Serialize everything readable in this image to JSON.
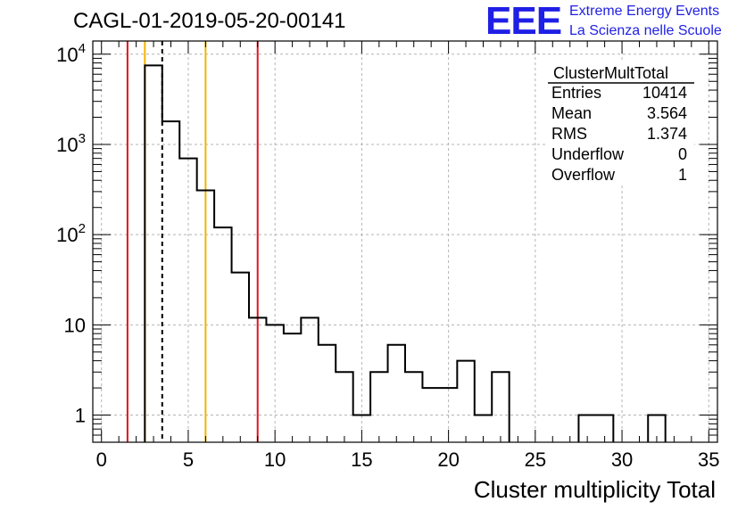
{
  "header": {
    "title": "CAGL-01-2019-05-20-00141",
    "logo_mark": "EEE",
    "logo_line1": "Extreme Energy Events",
    "logo_line2": "La Scienza nelle Scuole"
  },
  "stats_box": {
    "title": "ClusterMultTotal",
    "rows": [
      {
        "label": "Entries",
        "value": "10414"
      },
      {
        "label": "Mean",
        "value": "3.564"
      },
      {
        "label": "RMS",
        "value": "1.374"
      },
      {
        "label": "Underflow",
        "value": "0"
      },
      {
        "label": "Overflow",
        "value": "1"
      }
    ]
  },
  "colors": {
    "histogram": "#000000",
    "red_lines": "#e0141e",
    "yellow_lines": "#f0b400",
    "grid": "#b4b4b4",
    "logo": "#1f1fe6"
  },
  "chart_data": {
    "type": "bar",
    "style": "step-histogram",
    "title": "CAGL-01-2019-05-20-00141",
    "xlabel": "Cluster multiplicity Total",
    "ylabel": "",
    "yscale": "log",
    "xlim": [
      -0.5,
      35.5
    ],
    "ylim": [
      0.5,
      14000
    ],
    "grid": true,
    "legend": "none",
    "x_ticks": [
      0,
      5,
      10,
      15,
      20,
      25,
      30,
      35
    ],
    "y_ticks": [
      "1",
      "10",
      "10^2",
      "10^3",
      "10^4"
    ],
    "bin_width": 1,
    "bins": [
      {
        "x": 3,
        "value": 7500
      },
      {
        "x": 4,
        "value": 1800
      },
      {
        "x": 5,
        "value": 700
      },
      {
        "x": 6,
        "value": 310
      },
      {
        "x": 7,
        "value": 120
      },
      {
        "x": 8,
        "value": 38
      },
      {
        "x": 9,
        "value": 12
      },
      {
        "x": 10,
        "value": 10
      },
      {
        "x": 11,
        "value": 8
      },
      {
        "x": 12,
        "value": 12
      },
      {
        "x": 13,
        "value": 6
      },
      {
        "x": 14,
        "value": 3
      },
      {
        "x": 15,
        "value": 1
      },
      {
        "x": 16,
        "value": 3
      },
      {
        "x": 17,
        "value": 6
      },
      {
        "x": 18,
        "value": 3
      },
      {
        "x": 19,
        "value": 2
      },
      {
        "x": 20,
        "value": 2
      },
      {
        "x": 21,
        "value": 4
      },
      {
        "x": 22,
        "value": 1
      },
      {
        "x": 23,
        "value": 3
      },
      {
        "x": 28,
        "value": 1
      },
      {
        "x": 29,
        "value": 1
      },
      {
        "x": 32,
        "value": 1
      }
    ],
    "vertical_lines": [
      {
        "x": 1.5,
        "color": "red"
      },
      {
        "x": 2.5,
        "color": "yellow"
      },
      {
        "x": 3.5,
        "color": "black",
        "style": "dashed"
      },
      {
        "x": 6.0,
        "color": "yellow"
      },
      {
        "x": 9.0,
        "color": "red"
      }
    ]
  }
}
